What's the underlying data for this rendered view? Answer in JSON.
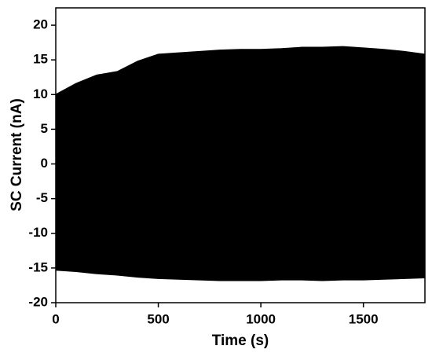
{
  "chart_data": {
    "type": "range-area",
    "x_label": "Time (s)",
    "y_label": "SC Current (nA)",
    "x": [
      0,
      100,
      200,
      300,
      400,
      500,
      600,
      700,
      800,
      900,
      1000,
      1100,
      1200,
      1300,
      1400,
      1500,
      1600,
      1700,
      1800
    ],
    "high": [
      10,
      11.6,
      12.8,
      13.3,
      14.8,
      15.8,
      16,
      16.2,
      16.4,
      16.5,
      16.5,
      16.6,
      16.8,
      16.8,
      16.9,
      16.7,
      16.5,
      16.2,
      15.8
    ],
    "low": [
      -15.3,
      -15.5,
      -15.8,
      -16,
      -16.3,
      -16.5,
      -16.6,
      -16.7,
      -16.8,
      -16.8,
      -16.8,
      -16.7,
      -16.7,
      -16.8,
      -16.7,
      -16.7,
      -16.6,
      -16.5,
      -16.4
    ],
    "color": "#000000",
    "xlim": [
      0,
      1800
    ],
    "xticks": [
      0,
      500,
      1000,
      1500
    ],
    "ylim": [
      -20,
      22.5
    ],
    "yticks": [
      -20,
      -15,
      -10,
      -5,
      0,
      5,
      10,
      15,
      20
    ]
  }
}
